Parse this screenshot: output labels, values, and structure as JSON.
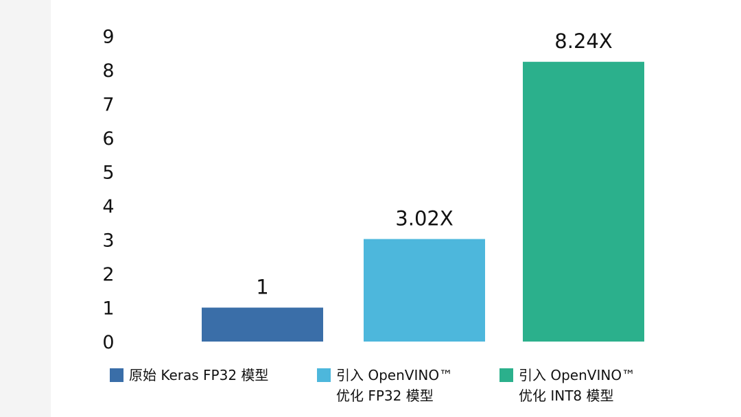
{
  "chart_data": {
    "type": "bar",
    "categories": [
      "原始 Keras FP32 模型",
      "引入 OpenVINO™\n优化 FP32 模型",
      "引入 OpenVINO™\n优化 INT8 模型"
    ],
    "values": [
      1,
      3.02,
      8.24
    ],
    "data_labels": [
      "1",
      "3.02X",
      "8.24X"
    ],
    "colors": [
      "#3a6ea8",
      "#4db7dc",
      "#2bb08c"
    ],
    "title": "",
    "xlabel": "",
    "ylabel": "",
    "ylim": [
      0,
      9
    ],
    "yticks": [
      "0",
      "1",
      "2",
      "3",
      "4",
      "5",
      "6",
      "7",
      "8",
      "9"
    ],
    "grid": false,
    "legend_position": "bottom"
  }
}
